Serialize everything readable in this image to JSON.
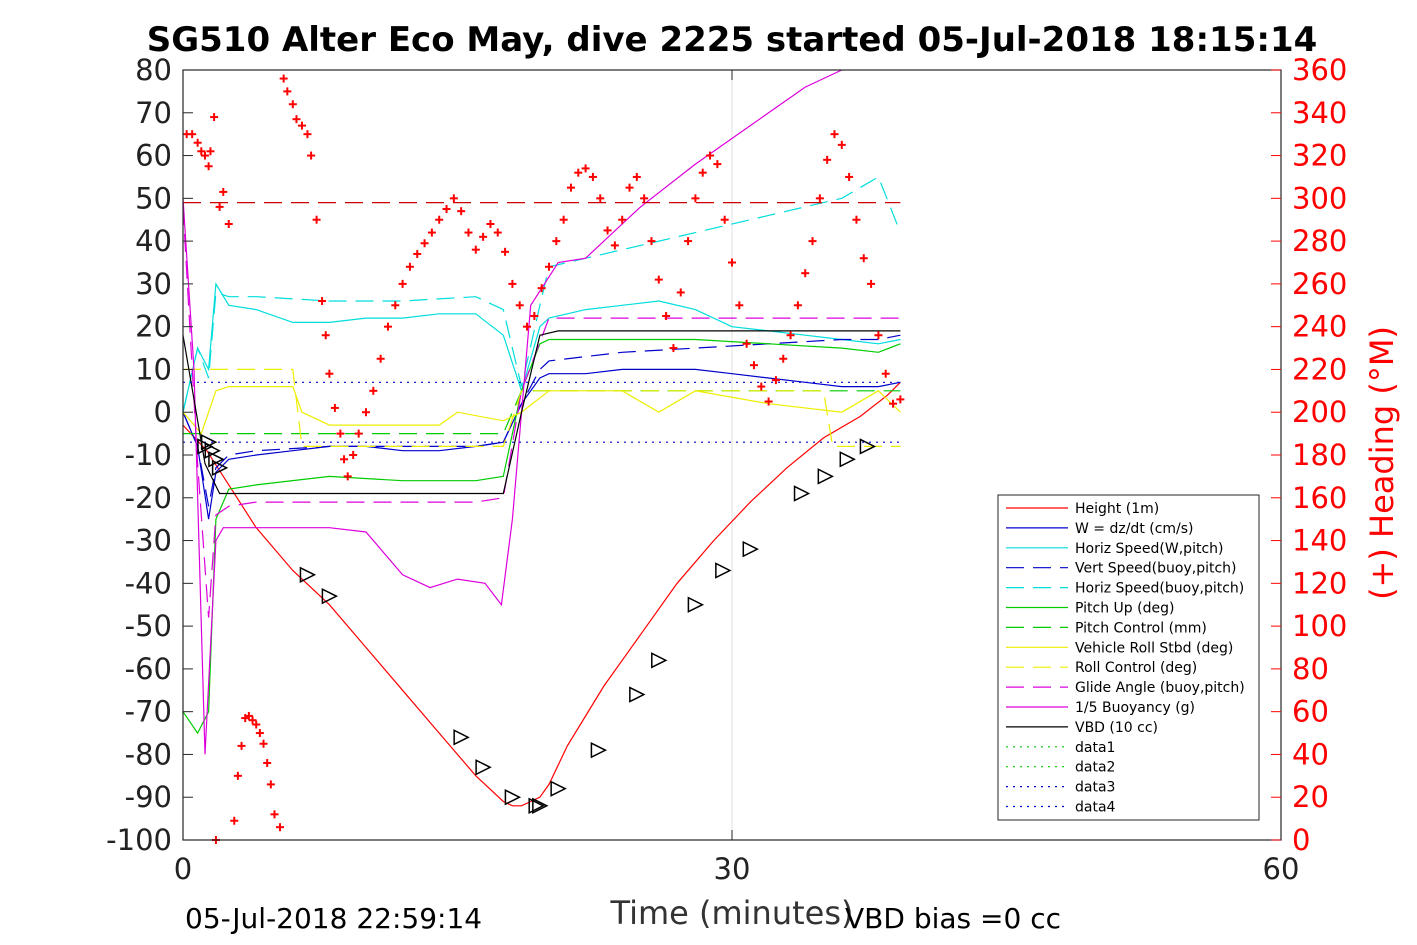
{
  "chart_data": {
    "type": "line",
    "title": "SG510 Alter Eco May, dive 2225 started 05-Jul-2018 18:15:14",
    "xlabel": "Time (minutes)",
    "ylabel": "",
    "y2label": "(+) Heading (°M)",
    "xlim": [
      0,
      60
    ],
    "ylim": [
      -100,
      80
    ],
    "y2lim": [
      0,
      360
    ],
    "x_ticks": [
      0,
      30,
      60
    ],
    "y_ticks": [
      80,
      70,
      60,
      50,
      40,
      30,
      20,
      10,
      0,
      -10,
      -20,
      -30,
      -40,
      -50,
      -60,
      -70,
      -80,
      -90,
      -100
    ],
    "y2_ticks": [
      360,
      340,
      320,
      300,
      280,
      260,
      240,
      220,
      200,
      180,
      160,
      140,
      120,
      100,
      80,
      60,
      40,
      20,
      0
    ],
    "grid": "x only",
    "legend_position": "lower-right",
    "footer_left": "05-Jul-2018 22:59:14",
    "footer_right": "VBD bias =0 cc",
    "series": [
      {
        "name": "Height (1m)",
        "color": "#ff0000",
        "dash": "solid",
        "x": [
          0.0,
          1.3,
          2.5,
          4.0,
          6.0,
          8.0,
          10.0,
          12.0,
          14.0,
          16.0,
          17.5,
          18.0,
          18.5,
          19.0,
          19.5,
          20.0,
          21.0,
          23.0,
          25.0,
          27.0,
          29.0,
          31.0,
          33.0,
          35.0,
          37.0,
          38.5,
          39.2
        ],
        "y": [
          -3,
          -9,
          -17,
          -27,
          -37,
          -45,
          -55,
          -65,
          -75,
          -85,
          -91,
          -92,
          -92,
          -91,
          -90,
          -87,
          -78,
          -64,
          -52,
          -40,
          -30,
          -21,
          -13,
          -6,
          -1,
          4,
          7
        ]
      },
      {
        "name": "W = dz/dt (cm/s)",
        "color": "#0000cc",
        "dash": "solid",
        "x": [
          0.0,
          0.8,
          1.4,
          1.8,
          2.5,
          4,
          6,
          8,
          10,
          12,
          14,
          16,
          17.5,
          18.5,
          19.5,
          20,
          22,
          24,
          26,
          28,
          30,
          32,
          34,
          36,
          38,
          39.2
        ],
        "y": [
          0,
          -8,
          -25,
          -14,
          -11,
          -10,
          -9,
          -8,
          -8,
          -9,
          -9,
          -8,
          -7,
          2,
          8,
          9,
          9,
          10,
          10,
          10,
          9,
          8,
          7,
          6,
          6,
          7
        ]
      },
      {
        "name": "Horiz Speed(W,pitch)",
        "color": "#00dddd",
        "dash": "solid",
        "x": [
          0.0,
          0.8,
          1.4,
          1.8,
          2.5,
          4,
          6,
          8,
          10,
          12,
          14,
          16,
          17.5,
          18.5,
          19.5,
          20,
          22,
          24,
          26,
          28,
          30,
          32,
          34,
          36,
          38,
          39.2
        ],
        "y": [
          0,
          15,
          10,
          30,
          25,
          24,
          21,
          21,
          22,
          22,
          23,
          23,
          18,
          5,
          20,
          22,
          24,
          25,
          26,
          24,
          20,
          19,
          18,
          17,
          16,
          17
        ]
      },
      {
        "name": "Vert Speed(buoy,pitch)",
        "color": "#0000cc",
        "dash": "long",
        "x": [
          0.0,
          0.8,
          1.4,
          1.8,
          2.5,
          4,
          8,
          12,
          16,
          17.5,
          18.5,
          19.5,
          20,
          24,
          28,
          32,
          36,
          38,
          39.2
        ],
        "y": [
          0,
          -8,
          -22,
          -13,
          -10,
          -9,
          -8,
          -8,
          -8,
          -7,
          2,
          10,
          12,
          14,
          15,
          16,
          17,
          17,
          18
        ]
      },
      {
        "name": "Horiz Speed(buoy,pitch)",
        "color": "#00dddd",
        "dash": "long",
        "x": [
          0.0,
          0.8,
          1.4,
          1.8,
          2.5,
          4,
          8,
          12,
          16,
          17.5,
          18.5,
          19.5,
          20,
          24,
          28,
          32,
          36,
          38,
          39.2
        ],
        "y": [
          0,
          15,
          8,
          28,
          27,
          27,
          26,
          26,
          27,
          24,
          6,
          25,
          34,
          38,
          42,
          46,
          50,
          55,
          42
        ]
      },
      {
        "name": "Pitch Up (deg)",
        "color": "#00cc00",
        "dash": "solid",
        "x": [
          0.0,
          0.8,
          1.4,
          1.8,
          2.5,
          4,
          8,
          12,
          16,
          17.5,
          18.5,
          19.5,
          20,
          24,
          28,
          32,
          36,
          38,
          39.2
        ],
        "y": [
          -70,
          -75,
          -70,
          -25,
          -18,
          -17,
          -15,
          -16,
          -16,
          -15,
          5,
          16,
          17,
          17,
          17,
          16,
          15,
          14,
          16
        ]
      },
      {
        "name": "Pitch Control (mm)",
        "color": "#00cc00",
        "dash": "long",
        "x": [
          0.0,
          0.8,
          1.0,
          17.5,
          18.5,
          20,
          39.2
        ],
        "y": [
          -5,
          -5,
          -5,
          -5,
          5,
          5,
          5
        ]
      },
      {
        "name": "Vehicle Roll Stbd (deg)",
        "color": "#eeee00",
        "dash": "solid",
        "x": [
          0.0,
          1.0,
          1.8,
          2.5,
          6,
          6.5,
          8,
          14,
          15,
          17.5,
          18.5,
          20,
          24,
          26,
          28,
          32,
          36,
          38,
          39.2
        ],
        "y": [
          0,
          -5,
          5,
          6,
          6,
          0,
          -3,
          -3,
          0,
          -2,
          0,
          5,
          5,
          0,
          5,
          2,
          0,
          5,
          0
        ]
      },
      {
        "name": "Roll Control (deg)",
        "color": "#eeee00",
        "dash": "long",
        "x": [
          0.0,
          1.0,
          1.8,
          6,
          6.5,
          17.5,
          18.5,
          35,
          35.5,
          39.2
        ],
        "y": [
          10,
          10,
          10,
          10,
          -8,
          -8,
          5,
          5,
          -8,
          -8
        ]
      },
      {
        "name": "Glide Angle (buoy,pitch)",
        "color": "#dd00dd",
        "dash": "long",
        "x": [
          0.0,
          0.8,
          1.4,
          1.8,
          2.5,
          4,
          8,
          12,
          16,
          17.5,
          18.5,
          20,
          39.2
        ],
        "y": [
          48,
          -12,
          -48,
          -24,
          -22,
          -21,
          -21,
          -21,
          -21,
          -20,
          5,
          22,
          22
        ]
      },
      {
        "name": "1/5 Buoyancy (g)",
        "color": "#dd00dd",
        "dash": "solid",
        "x": [
          0.0,
          0.6,
          1.2,
          1.8,
          2.2,
          5,
          8,
          10,
          12,
          13.5,
          15,
          16.5,
          17.4,
          18.0,
          19.0,
          20.5,
          22,
          25,
          28,
          31,
          34,
          36
        ],
        "y": [
          50,
          10,
          -80,
          -30,
          -27,
          -27,
          -27,
          -28,
          -38,
          -41,
          -39,
          -40,
          -45,
          -25,
          25,
          35,
          36,
          48,
          58,
          67,
          76,
          80
        ]
      },
      {
        "name": "VBD (10 cc)",
        "color": "#000000",
        "dash": "solid",
        "x": [
          0.0,
          1.2,
          2.0,
          10,
          17.5,
          18.5,
          19.5,
          20.5,
          30,
          39.2
        ],
        "y": [
          18,
          -12,
          -19,
          -19,
          -19,
          0,
          18,
          19,
          19,
          19
        ]
      },
      {
        "name": "data1",
        "color": "#00cc00",
        "dash": "dot",
        "x": [],
        "y": []
      },
      {
        "name": "data2",
        "color": "#00cc00",
        "dash": "dot",
        "x": [],
        "y": []
      },
      {
        "name": "data3",
        "color": "#0000cc",
        "dash": "dot",
        "x": [
          0,
          39.2
        ],
        "y": [
          7,
          7
        ]
      },
      {
        "name": "data4",
        "color": "#0000cc",
        "dash": "dot",
        "x": [
          0,
          39.2
        ],
        "y": [
          -7,
          -7
        ]
      }
    ],
    "reference_lines": [
      {
        "color": "#cc0000",
        "dash": "long",
        "axis": "right",
        "value": 298,
        "x": [
          0,
          39.2
        ]
      }
    ],
    "markers": {
      "triangles": {
        "color": "#000000",
        "x": [
          1.2,
          1.4,
          1.6,
          1.8,
          2.0,
          6.8,
          8.0,
          15.2,
          16.4,
          18.0,
          19.3,
          19.5,
          20.5,
          22.7,
          24.8,
          26.0,
          28.0,
          29.5,
          31.0,
          33.8,
          35.1,
          36.3,
          37.4
        ],
        "y": [
          -8,
          -7,
          -9,
          -11,
          -13,
          -38,
          -43,
          -76,
          -83,
          -90,
          -92,
          -92,
          -88,
          -79,
          -66,
          -58,
          -45,
          -37,
          -32,
          -19,
          -15,
          -11,
          -8
        ]
      },
      "heading_plus": {
        "color": "#ff0000",
        "axis": "right",
        "x": [
          0.2,
          0.5,
          0.8,
          1.0,
          1.2,
          1.4,
          1.5,
          1.7,
          1.8,
          2.0,
          2.2,
          2.5,
          2.8,
          3.0,
          3.2,
          3.4,
          3.6,
          3.8,
          4.0,
          4.2,
          4.4,
          4.6,
          4.8,
          5.0,
          5.3,
          5.5,
          5.7,
          6.0,
          6.2,
          6.5,
          6.8,
          7.0,
          7.3,
          7.6,
          7.8,
          8.0,
          8.3,
          8.6,
          8.8,
          9.0,
          9.3,
          9.6,
          10.0,
          10.4,
          10.8,
          11.2,
          11.6,
          12.0,
          12.4,
          12.8,
          13.2,
          13.6,
          14.0,
          14.4,
          14.8,
          15.2,
          15.6,
          16.0,
          16.4,
          16.8,
          17.2,
          17.6,
          18.0,
          18.4,
          18.8,
          19.2,
          19.6,
          20.0,
          20.4,
          20.8,
          21.2,
          21.6,
          22.0,
          22.4,
          22.8,
          23.2,
          23.6,
          24.0,
          24.4,
          24.8,
          25.2,
          25.6,
          26.0,
          26.4,
          26.8,
          27.2,
          27.6,
          28.0,
          28.4,
          28.8,
          29.2,
          29.6,
          30.0,
          30.4,
          30.8,
          31.2,
          31.6,
          32.0,
          32.4,
          32.8,
          33.2,
          33.6,
          34.0,
          34.4,
          34.8,
          35.2,
          35.6,
          36.0,
          36.4,
          36.8,
          37.2,
          37.6,
          38.0,
          38.4,
          38.8,
          39.2
        ],
        "y": [
          330,
          330,
          326,
          322,
          320,
          315,
          322,
          338,
          0,
          296,
          303,
          288,
          9,
          30,
          44,
          57,
          58,
          56,
          54,
          50,
          45,
          36,
          26,
          12,
          6,
          356,
          350,
          344,
          337,
          334,
          330,
          320,
          290,
          252,
          236,
          218,
          202,
          190,
          178,
          170,
          180,
          190,
          200,
          210,
          225,
          240,
          250,
          260,
          268,
          274,
          279,
          284,
          290,
          295,
          300,
          294,
          284,
          276,
          282,
          288,
          284,
          275,
          260,
          250,
          240,
          245,
          258,
          268,
          280,
          290,
          305,
          312,
          314,
          310,
          300,
          285,
          278,
          290,
          305,
          310,
          300,
          280,
          262,
          245,
          230,
          256,
          280,
          300,
          312,
          320,
          316,
          290,
          270,
          250,
          232,
          222,
          212,
          205,
          215,
          225,
          236,
          250,
          265,
          280,
          300,
          318,
          330,
          325,
          310,
          290,
          272,
          260,
          236,
          218,
          204,
          206
        ]
      }
    }
  }
}
